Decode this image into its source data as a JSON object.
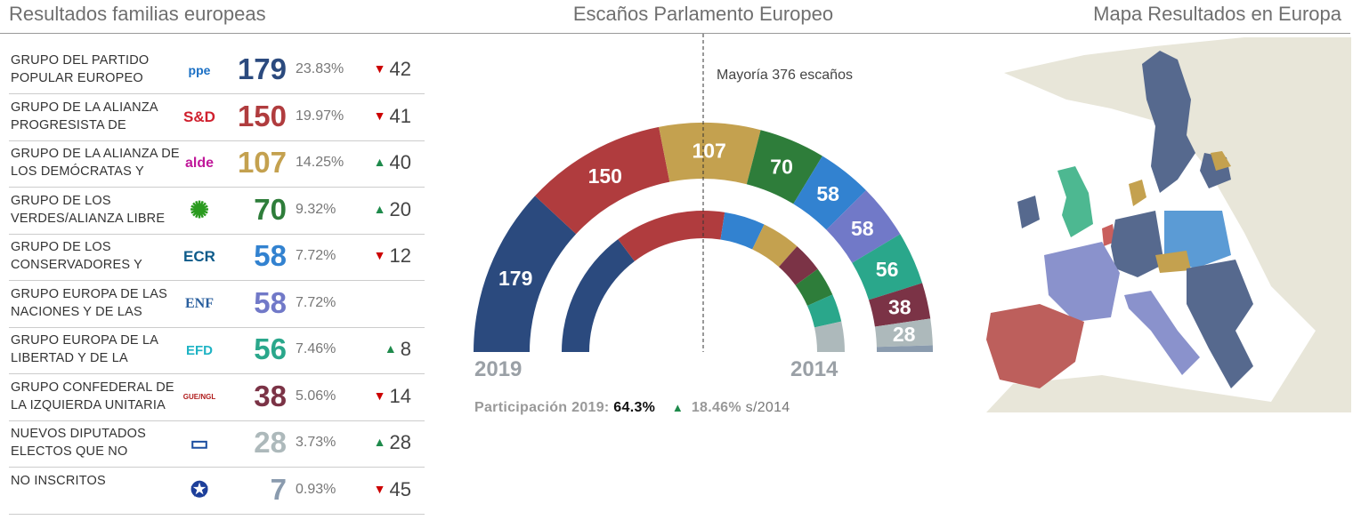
{
  "titles": {
    "left": "Resultados familias europeas",
    "center": "Escaños Parlamento Europeo",
    "right": "Mapa Resultados en Europa"
  },
  "groups": [
    {
      "name": "GRUPO DEL PARTIDO POPULAR EUROPEO",
      "logo": "ppe",
      "seats": "179",
      "pct": "23.83%",
      "dir": "down",
      "change": "42",
      "color": "#2b4a7e",
      "seats2014": 221
    },
    {
      "name": "GRUPO DE LA ALIANZA PROGRESISTA DE",
      "logo": "S&D",
      "seats": "150",
      "pct": "19.97%",
      "dir": "down",
      "change": "41",
      "color": "#b03c3e",
      "seats2014": 191
    },
    {
      "name": "GRUPO DE LA ALIANZA DE LOS DEMÓCRATAS Y",
      "logo": "alde",
      "seats": "107",
      "pct": "14.25%",
      "dir": "up",
      "change": "40",
      "color": "#c4a14f",
      "seats2014": 67
    },
    {
      "name": "GRUPO DE LOS VERDES/ALIANZA LIBRE",
      "logo": "greens",
      "seats": "70",
      "pct": "9.32%",
      "dir": "up",
      "change": "20",
      "color": "#2e7d3a",
      "seats2014": 50
    },
    {
      "name": "GRUPO DE LOS CONSERVADORES Y",
      "logo": "ECR",
      "seats": "58",
      "pct": "7.72%",
      "dir": "down",
      "change": "12",
      "color": "#3282d0",
      "seats2014": 70
    },
    {
      "name": "GRUPO EUROPA DE LAS NACIONES Y DE LAS",
      "logo": "ENF",
      "seats": "58",
      "pct": "7.72%",
      "dir": "",
      "change": "",
      "color": "#7179c8",
      "seats2014": 0
    },
    {
      "name": "GRUPO EUROPA DE LA LIBERTAD Y DE LA",
      "logo": "EFD",
      "seats": "56",
      "pct": "7.46%",
      "dir": "up",
      "change": "8",
      "color": "#2aa78b",
      "seats2014": 48
    },
    {
      "name": "GRUPO CONFEDERAL DE LA IZQUIERDA UNITARIA",
      "logo": "GUE/NGL",
      "seats": "38",
      "pct": "5.06%",
      "dir": "down",
      "change": "14",
      "color": "#7b3346",
      "seats2014": 52
    },
    {
      "name": "NUEVOS DIPUTADOS ELECTOS QUE NO",
      "logo": "parliament",
      "seats": "28",
      "pct": "3.73%",
      "dir": "up",
      "change": "28",
      "color": "#adb9bb",
      "seats2014": 0
    },
    {
      "name": "NO INSCRITOS",
      "logo": "eu-stars",
      "seats": "7",
      "pct": "0.93%",
      "dir": "down",
      "change": "45",
      "color": "#8a9bae",
      "seats2014": 52
    }
  ],
  "chart_data": {
    "type": "pie",
    "subtype": "semicircle-donut",
    "majority_label": "Mayoría 376 escaños",
    "rings": [
      {
        "name": "2019",
        "categories": [
          "PPE",
          "S&D",
          "ALDE",
          "Verdes/ALE",
          "ECR",
          "ENF",
          "EFDD",
          "GUE/NGL",
          "Nuevos",
          "NI"
        ],
        "values": [
          179,
          150,
          107,
          70,
          58,
          58,
          56,
          38,
          28,
          7
        ]
      },
      {
        "name": "2014",
        "categories": [
          "PPE",
          "S&D",
          "ECR",
          "ALDE",
          "GUE/NGL",
          "Verdes/ALE",
          "EFDD",
          "NI"
        ],
        "values": [
          221,
          191,
          70,
          67,
          52,
          50,
          48,
          52
        ]
      }
    ],
    "ring_colors": {
      "outer": [
        "#2b4a7e",
        "#b03c3e",
        "#c4a14f",
        "#2e7d3a",
        "#3282d0",
        "#7179c8",
        "#2aa78b",
        "#7b3346",
        "#adb9bb",
        "#8a9bae"
      ],
      "inner": [
        "#2b4a7e",
        "#b03c3e",
        "#3282d0",
        "#c4a14f",
        "#7b3346",
        "#2e7d3a",
        "#2aa78b",
        "#adb9bb"
      ]
    }
  },
  "participation": {
    "label": "Participación 2019:",
    "value": "64.3%",
    "change": "18.46%",
    "suffix": "s/2014"
  },
  "colors": {
    "up": "#1e8a4b",
    "down": "#cc0000"
  }
}
